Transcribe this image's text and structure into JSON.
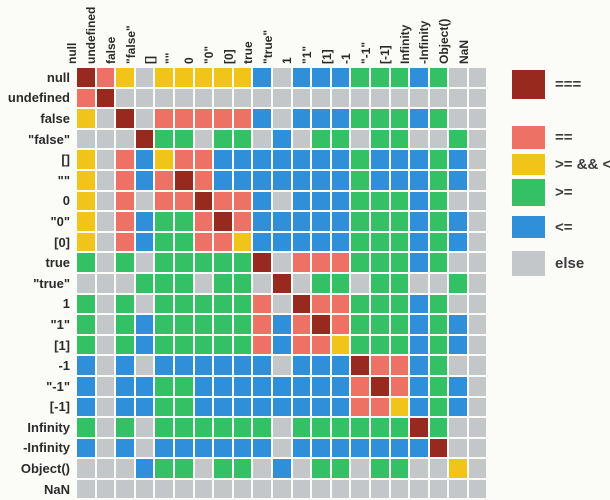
{
  "chart_data": {
    "type": "heatmap",
    "description": "JavaScript comparison-operator matrix: for each row value a and column value b, the cell shows the strongest relation that holds between a and b",
    "categories": [
      "null",
      "undefined",
      "false",
      "\"false\"",
      "[]",
      "\"\"",
      "0",
      "\"0\"",
      "[0]",
      "true",
      "\"true\"",
      "1",
      "\"1\"",
      "[1]",
      "-1",
      "\"-1\"",
      "[-1]",
      "Infinity",
      "-Infinity",
      "Object()",
      "NaN"
    ],
    "matrix": [
      "EQYXYYYYYBXBBBGGGBGXX",
      "QEXXXXXXXXXXXXXXXXXXX",
      "YXEXQQQQQBXBBBGGGBGXX",
      "XXXEGGXGGXBXGGXGGXXGX",
      "YXQBYQQBBBBBBBGBBBGBX",
      "YXQBQEQBBBBBBBGBBBGBX",
      "YXQXQQEQQBXBBBGGGBGXX",
      "YXQBGGQEQBBBBBGGGBGBX",
      "YXQBGGQQYBBBBBGGGBGBX",
      "GXGXGGGGGEXQQQGGGBGXX",
      "XXXGGGXGGXEXGGXGGXXGX",
      "GXGXGGGGGQXEQQGGGBGXX",
      "GXGBGGGGGQBQEQGGGBGBX",
      "GXGBGGGGGQBQQYGGGBGBX",
      "BXBXBBBBBBXBBBEQQBGXX",
      "BXBBGGBBBBBBBBQEQBGBX",
      "BXBBGGBBBBBBBBQQYBGBX",
      "GXGXGGGGGGXGGGGGGEGXX",
      "BXBXBBBBBBXBBBBBBBEXX",
      "XXXBGGXGGXBXGGXGGXXYX",
      "XXXXXXXXXXXXXXXXXXXXX"
    ],
    "legend": [
      {
        "code": "E",
        "label": "===",
        "color": "#97291e"
      },
      {
        "code": "Q",
        "label": "==",
        "color": "#ed7164"
      },
      {
        "code": "Y",
        "label": ">= && <=",
        "color": "#f0c419"
      },
      {
        "code": "G",
        "label": ">=",
        "color": "#34c065"
      },
      {
        "code": "B",
        "label": "<=",
        "color": "#2f8fd8"
      },
      {
        "code": "X",
        "label": "else",
        "color": "#c4c7ca"
      }
    ],
    "legend_position": "right",
    "grid": true
  },
  "colors": {
    "background": "#fbfbf8",
    "label_text": "#2b2b2b",
    "legend_text": "#3d3d3d"
  }
}
